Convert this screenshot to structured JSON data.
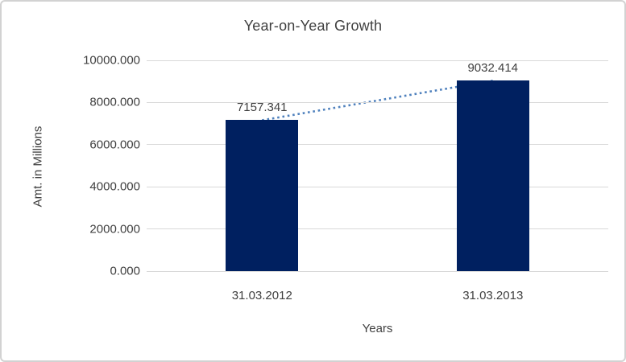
{
  "chart": {
    "title": "Year-on-Year Growth",
    "y_axis_title": "Amt. in Millions",
    "x_axis_title": "Years"
  },
  "chart_data": {
    "type": "bar",
    "title": "Year-on-Year Growth",
    "xlabel": "Years",
    "ylabel": "Amt. in Millions",
    "categories": [
      "31.03.2012",
      "31.03.2013"
    ],
    "values": [
      7157.341,
      9032.414
    ],
    "data_labels": [
      "7157.341",
      "9032.414"
    ],
    "ylim": [
      0,
      10000
    ],
    "y_ticks": [
      {
        "value": 0,
        "label": "0.000"
      },
      {
        "value": 2000,
        "label": "2000.000"
      },
      {
        "value": 4000,
        "label": "4000.000"
      },
      {
        "value": 6000,
        "label": "6000.000"
      },
      {
        "value": 8000,
        "label": "8000.000"
      },
      {
        "value": 10000,
        "label": "10000.000"
      }
    ],
    "grid": "horizontal",
    "legend": "none",
    "trendline": {
      "style": "dotted",
      "connects": "bar-tops"
    },
    "colors": {
      "bar": "#002060",
      "trendline": "#4f81bd",
      "gridline": "#d9d9d9",
      "text": "#3f3f3f",
      "frame_border": "#d2d2d2",
      "background": "#ffffff"
    }
  }
}
